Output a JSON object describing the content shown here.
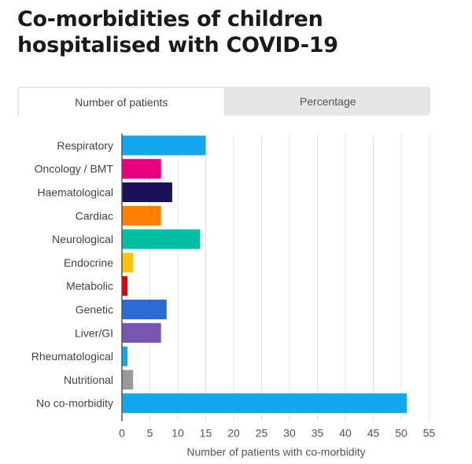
{
  "title": "Co-morbidities of children hospitalised with COVID-19",
  "tabs": [
    {
      "label": "Number of patients",
      "active": true
    },
    {
      "label": "Percentage",
      "active": false
    }
  ],
  "chart_data": {
    "type": "bar",
    "orientation": "horizontal",
    "title": "Co-morbidities of children hospitalised with COVID-19",
    "xlabel": "Number of patients with co-morbidity",
    "ylabel": "",
    "xlim": [
      0,
      56
    ],
    "xticks": [
      0,
      5,
      10,
      15,
      20,
      25,
      30,
      35,
      40,
      45,
      50,
      55
    ],
    "grid": true,
    "categories": [
      "Respiratory",
      "Oncology / BMT",
      "Haematological",
      "Cardiac",
      "Neurological",
      "Endocrine",
      "Metabolic",
      "Genetic",
      "Liver/GI",
      "Rheumatological",
      "Nutritional",
      "No co-morbidity"
    ],
    "values": [
      15,
      7,
      9,
      7,
      14,
      2,
      1,
      8,
      7,
      1,
      2,
      51
    ],
    "colors": [
      "#15a6f0",
      "#e6007e",
      "#1c1259",
      "#ff7f00",
      "#00bfa5",
      "#ffc20e",
      "#e20000",
      "#2b6bd6",
      "#7755b0",
      "#15a6f0",
      "#999999",
      "#15a6f0"
    ]
  }
}
